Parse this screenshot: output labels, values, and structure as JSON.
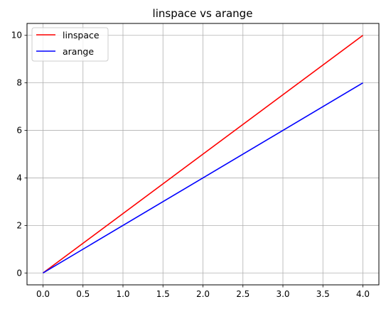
{
  "chart_data": {
    "type": "line",
    "title": "linspace vs arange",
    "xlabel": "",
    "ylabel": "",
    "xlim": [
      -0.2,
      4.2
    ],
    "ylim": [
      -0.5,
      10.5
    ],
    "xticks": [
      0.0,
      0.5,
      1.0,
      1.5,
      2.0,
      2.5,
      3.0,
      3.5,
      4.0
    ],
    "xtick_labels": [
      "0.0",
      "0.5",
      "1.0",
      "1.5",
      "2.0",
      "2.5",
      "3.0",
      "3.5",
      "4.0"
    ],
    "yticks": [
      0,
      2,
      4,
      6,
      8,
      10
    ],
    "ytick_labels": [
      "0",
      "2",
      "4",
      "6",
      "8",
      "10"
    ],
    "grid": true,
    "legend_position": "top-left",
    "series": [
      {
        "name": "linspace",
        "color": "#ff0000",
        "x": [
          0,
          4
        ],
        "y": [
          0,
          10
        ]
      },
      {
        "name": "arange",
        "color": "#0000ff",
        "x": [
          0,
          4
        ],
        "y": [
          0,
          8
        ]
      }
    ]
  }
}
